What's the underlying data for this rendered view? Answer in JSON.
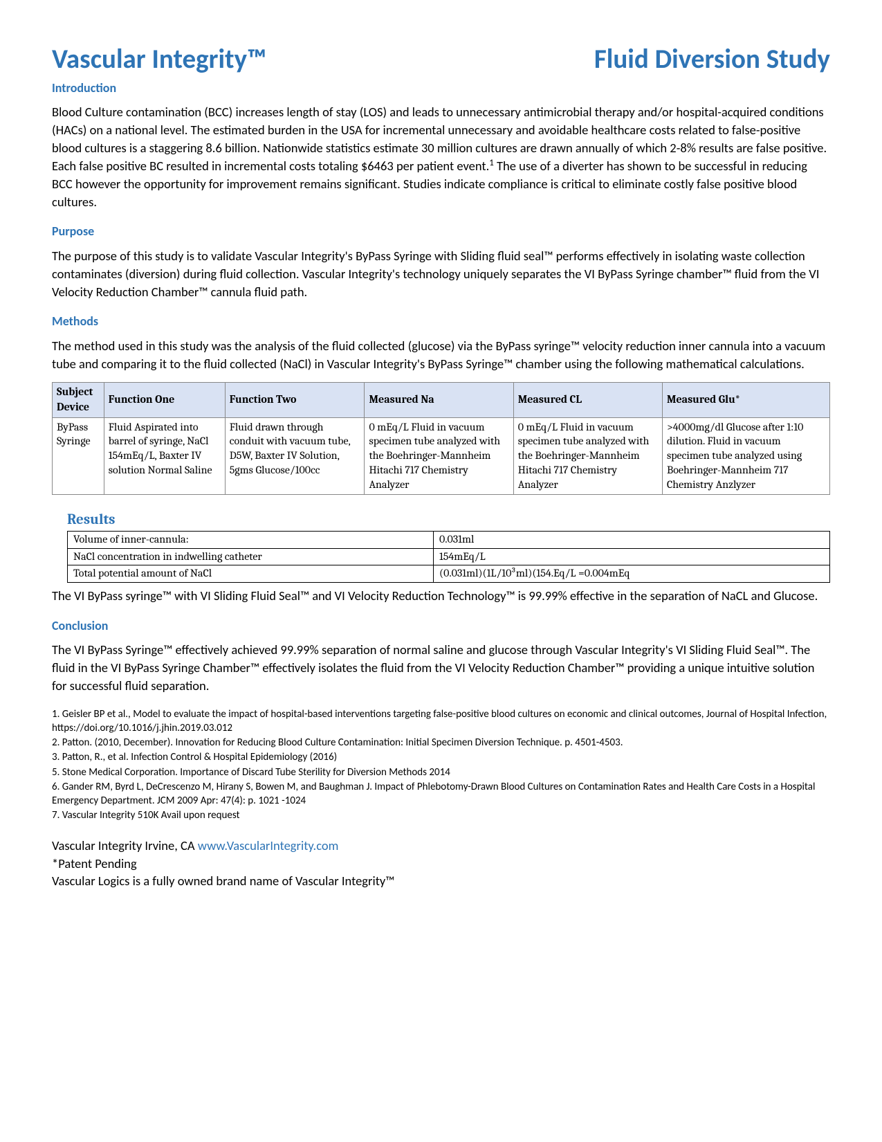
{
  "header": {
    "title_left": "Vascular Integrity™",
    "title_right": "Fluid Diversion Study"
  },
  "sections": {
    "intro_heading": "Introduction",
    "intro_body": "Blood Culture contamination (BCC) increases length of stay (LOS) and leads to unnecessary antimicrobial therapy and/or hospital-acquired conditions (HACs) on a national level. The estimated burden in the USA for incremental unnecessary and avoidable healthcare costs related to false-positive blood cultures is a staggering 8.6 billion. Nationwide statistics estimate 30 million cultures are drawn annually of which 2-8% results are false positive. Each false positive BC resulted in incremental costs totaling $6463 per patient event.",
    "intro_sup": "1",
    "intro_body2": " The use of a diverter has shown to be successful in reducing BCC however the opportunity for improvement remains significant. Studies indicate compliance is critical to eliminate costly false positive blood cultures.",
    "purpose_heading": "Purpose",
    "purpose_body": "The purpose of this study is to validate Vascular Integrity's ByPass Syringe with Sliding fluid seal™ performs effectively in isolating waste collection contaminates (diversion) during fluid collection. Vascular Integrity's technology uniquely separates the VI ByPass Syringe chamber™ fluid from the VI Velocity Reduction Chamber™ cannula fluid path.",
    "methods_heading": "Methods",
    "methods_body": "The method used in this study was the analysis of the fluid collected (glucose) via the ByPass syringe™ velocity reduction inner cannula into a vacuum tube and comparing it to the fluid collected (NaCl) in Vascular Integrity's ByPass Syringe™ chamber using the following mathematical calculations.",
    "results_heading": "Results",
    "results_body": "The VI ByPass syringe™ with VI Sliding Fluid Seal™ and VI Velocity Reduction Technology™ is 99.99% effective in the separation of NaCL and Glucose.",
    "conclusion_heading": "Conclusion",
    "conclusion_body": " The VI ByPass Syringe™ effectively achieved 99.99% separation of normal saline and glucose through Vascular Integrity's VI Sliding Fluid Seal™. The fluid in the VI ByPass Syringe Chamber™ effectively isolates the fluid from the VI Velocity Reduction Chamber™ providing a unique intuitive solution for successful fluid separation."
  },
  "methods_table": {
    "headers": [
      "Subject Device",
      "Function One",
      "Function Two",
      "Measured Na",
      "Measured CL",
      "Measured Glu*"
    ],
    "row": [
      "ByPass Syringe",
      "Fluid Aspirated into barrel of syringe, NaCl 154mEq/L, Baxter IV solution Normal Saline",
      "Fluid drawn through conduit with vacuum tube, D5W, Baxter IV Solution, 5gms Glucose/100cc",
      "0 mEq/L Fluid in vacuum specimen tube analyzed with the Boehringer-Mannheim Hitachi 717 Chemistry Analyzer",
      "0 mEq/L Fluid in vacuum specimen tube analyzed with the Boehringer-Mannheim Hitachi 717 Chemistry Analyzer",
      ">4000mg/dl Glucose after 1:10 dilution. Fluid in vacuum specimen tube analyzed using Boehringer-Mannheim 717 Chemistry Anzlyzer"
    ],
    "header_bg": "#d9e2f3",
    "border_color": "#888888"
  },
  "results_table": {
    "rows": [
      [
        "Volume of inner-cannula:",
        "0.031ml"
      ],
      [
        "NaCl concentration in indwelling catheter",
        "154mEq/L"
      ],
      [
        "Total potential amount of NaCl",
        "(0.031ml)(1L/10³ml)(154.Eq/L =0.004mEq"
      ]
    ]
  },
  "references": [
    "1. Geisler BP et al., Model to evaluate the impact of hospital-based interventions targeting false-positive blood cultures on economic and clinical outcomes, Journal of Hospital Infection, https://doi.org/10.1016/j.jhin.2019.03.012",
    "2. Patton. (2010, December). Innovation for Reducing Blood Culture Contamination: Initial Specimen Diversion Technique. p. 4501-4503.",
    "3. Patton, R., et al. Infection Control & Hospital Epidemiology (2016)",
    "5. Stone Medical Corporation. Importance of Discard Tube Sterility for Diversion Methods 2014",
    "6. Gander RM, Byrd L, DeCrescenzo M, Hirany S, Bowen M, and Baughman J. Impact of Phlebotomy-Drawn Blood Cultures on Contamination Rates and Health Care Costs in a Hospital Emergency Department. JCM 2009 Apr: 47(4): p. 1021 -1024",
    "7. Vascular Integrity 510K Avail upon request"
  ],
  "footer": {
    "location": "Vascular Integrity Irvine, CA   ",
    "url": "www.VascularIntegrity.com",
    "patent": "*Patent Pending",
    "brand": "Vascular Logics is a fully owned brand name of Vascular Integrity™"
  },
  "colors": {
    "heading_blue": "#2e74b5",
    "text_black": "#000000",
    "table_header_bg": "#d9e2f3"
  }
}
